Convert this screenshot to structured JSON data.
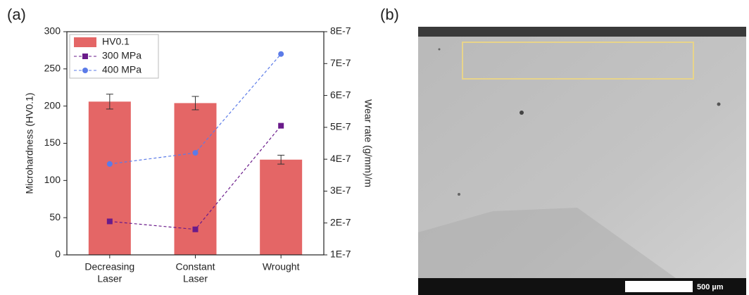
{
  "chart_data": {
    "type": "bar",
    "panel_label": "(a)",
    "categories": [
      [
        "Decreasing",
        "Laser"
      ],
      [
        "Constant",
        "Laser"
      ],
      [
        "Wrought"
      ]
    ],
    "y_label": "Microhardness (HV0.1)",
    "y2_label": "Wear rate (g/mm)/m",
    "ylim": [
      0,
      300
    ],
    "yticks": [
      0,
      50,
      100,
      150,
      200,
      250,
      300
    ],
    "y2lim": [
      1e-07,
      8e-07
    ],
    "y2ticks": [
      {
        "value": 1e-07,
        "label": "1E-7"
      },
      {
        "value": 2e-07,
        "label": "2E-7"
      },
      {
        "value": 3e-07,
        "label": "3E-7"
      },
      {
        "value": 4e-07,
        "label": "4E-7"
      },
      {
        "value": 5e-07,
        "label": "5E-7"
      },
      {
        "value": 6e-07,
        "label": "6E-7"
      },
      {
        "value": 7e-07,
        "label": "7E-7"
      },
      {
        "value": 8e-07,
        "label": "8E-7"
      }
    ],
    "legend": "upper left",
    "series": [
      {
        "name": "HV0.1",
        "type": "bar",
        "color": "#e46666",
        "values": [
          206,
          204,
          128
        ],
        "errors": [
          10,
          9,
          6
        ]
      },
      {
        "name": "300 MPa",
        "type": "line",
        "axis": "y2",
        "marker": "square",
        "color": "#6a1b8a",
        "values": [
          2.05e-07,
          1.8e-07,
          5.05e-07
        ]
      },
      {
        "name": "400 MPa",
        "type": "line",
        "axis": "y2",
        "marker": "circle",
        "color": "#5b7be8",
        "values": [
          3.85e-07,
          4.2e-07,
          7.3e-07
        ]
      }
    ]
  },
  "image_panel": {
    "panel_label": "(b)",
    "scale_bar": "500 µm"
  }
}
